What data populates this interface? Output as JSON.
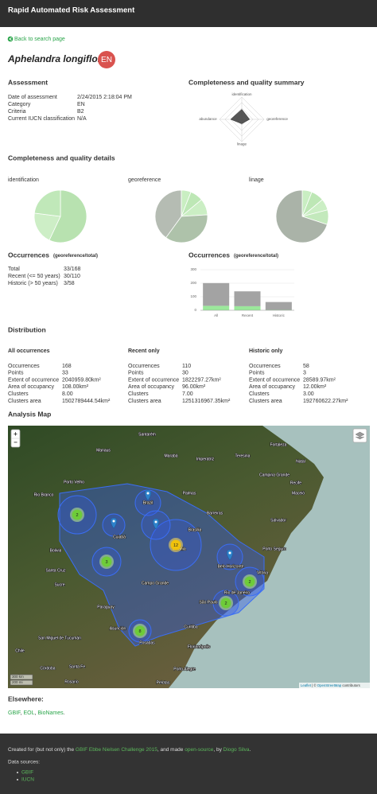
{
  "navbar": {
    "title": "Rapid Automated Risk Assessment"
  },
  "back_link": "Back to search page",
  "species": {
    "name": "Aphelandra longiflora",
    "category": "EN"
  },
  "assessment": {
    "title": "Assessment",
    "rows": [
      [
        "Date of assessment",
        "2/24/2015 2:18:04 PM"
      ],
      [
        "Category",
        "EN"
      ],
      [
        "Criteria",
        "B2"
      ],
      [
        "Current IUCN classification",
        "N/A"
      ]
    ]
  },
  "details_title": "Completeness and quality details",
  "occurrences": {
    "title": "Occurrences",
    "subtitle": "(georeference/total)",
    "rows": [
      [
        "Total",
        "33/168"
      ],
      [
        "Recent (<= 50 years)",
        "30/110"
      ],
      [
        "Historic (> 50 years)",
        "3/58"
      ]
    ]
  },
  "chart_data": [
    {
      "type": "radar",
      "title": "Completeness and quality summary",
      "axes": [
        "identification",
        "georeference",
        "linage",
        "abundance"
      ],
      "values": [
        0.45,
        0.35,
        0.2,
        0.5
      ],
      "rlim": [
        0,
        1
      ],
      "rticks": [
        0.25,
        0.5,
        0.75,
        1
      ],
      "color": "#444444"
    },
    {
      "type": "pie",
      "title": "identification",
      "values": [
        57,
        20,
        23
      ],
      "colors": [
        "#b8e2b0",
        "#cdeec6",
        "#c0e8b9"
      ]
    },
    {
      "type": "pie",
      "title": "georeference",
      "values": [
        6,
        8,
        10,
        36,
        40
      ],
      "colors": [
        "#c9eec2",
        "#bde7b5",
        "#cbeec4",
        "#aec2aa",
        "#b5bcb3"
      ]
    },
    {
      "type": "pie",
      "title": "linage",
      "values": [
        6,
        8,
        7,
        9,
        70
      ],
      "colors": [
        "#c9eec2",
        "#bde7b5",
        "#cbeec4",
        "#c3e9bc",
        "#aab3a8"
      ]
    },
    {
      "type": "bar",
      "stacked": true,
      "title": "Occurrences",
      "subtitle": "(georeference/total)",
      "categories": [
        "All",
        "Recent",
        "Historic"
      ],
      "series": [
        {
          "color": "#9be89b",
          "values": [
            33,
            30,
            3
          ]
        },
        {
          "color": "#a3a3a3",
          "values": [
            168,
            110,
            58
          ]
        }
      ],
      "ylim": [
        0,
        300
      ],
      "yticks": [
        0,
        100,
        200,
        300
      ],
      "grid": true
    }
  ],
  "distribution": {
    "title": "Distribution",
    "columns": [
      {
        "title": "All occurrences",
        "rows": [
          [
            "Occurrences",
            "168"
          ],
          [
            "Points",
            "33"
          ],
          [
            "Extent of occurrence",
            "2040959.80km²"
          ],
          [
            "Area of occupancy",
            "108.00km²"
          ],
          [
            "Clusters",
            "8.00"
          ],
          [
            "Clusters area",
            "1502789444.54km²"
          ]
        ]
      },
      {
        "title": "Recent only",
        "rows": [
          [
            "Occurrences",
            "110"
          ],
          [
            "Points",
            "30"
          ],
          [
            "Extent of occurrence",
            "1822297.27km²"
          ],
          [
            "Area of occupancy",
            "96.00km²"
          ],
          [
            "Clusters",
            "7.00"
          ],
          [
            "Clusters area",
            "1251316967.35km²"
          ]
        ]
      },
      {
        "title": "Historic only",
        "rows": [
          [
            "Occurrences",
            "58"
          ],
          [
            "Points",
            "3"
          ],
          [
            "Extent of occurrence",
            "28589.97km²"
          ],
          [
            "Area of occupancy",
            "12.00km²"
          ],
          [
            "Clusters",
            "3.00"
          ],
          [
            "Clusters area",
            "192760622.27km²"
          ]
        ]
      }
    ]
  },
  "map": {
    "title": "Analysis Map",
    "zoom_in": "+",
    "zoom_out": "−",
    "scale": [
      "300 km",
      "200 mi"
    ],
    "attribution": [
      {
        "text": "Leaflet",
        "link": true
      },
      {
        "text": " | © "
      },
      {
        "text": "OpenStreetMap",
        "link": true
      },
      {
        "text": " contributors"
      }
    ],
    "clusters": [
      2,
      3,
      12,
      2,
      2,
      8
    ],
    "labels": [
      "Santarém",
      "Manaus",
      "Marabá",
      "Imperatriz",
      "Fortaleza",
      "Natal",
      "Teresina",
      "Campina Grande",
      "Recife",
      "Maceió",
      "Porto Velho",
      "Rio Branco",
      "Brazil",
      "Palmas",
      "Barreiras",
      "Salvador",
      "Cuiabá",
      "Bolivia",
      "Brasília",
      "Goiânia",
      "Porto Seguro",
      "Santa Cruz",
      "Belo Horizonte",
      "Sucre",
      "Campo Grande",
      "Vitória",
      "Rio de Janeiro",
      "São Paulo",
      "Paraguay",
      "Asunción",
      "Curitiba",
      "Posadas",
      "San Miguel de Tucumán",
      "Florianópolis",
      "Córdoba",
      "Santa Fe",
      "Porto Alegre",
      "Rosario",
      "Chile",
      "Pelotas"
    ]
  },
  "elsewhere": {
    "title": "Elsewhere:",
    "items": [
      {
        "text": "GBIF",
        "link": true
      },
      {
        "text": ", "
      },
      {
        "text": "EOL",
        "link": true
      },
      {
        "text": ", "
      },
      {
        "text": "BioNames",
        "link": true
      },
      {
        "text": "."
      }
    ]
  },
  "footer": {
    "parts": [
      {
        "text": "Created for (but not only) the "
      },
      {
        "text": "GBIF Ebbe Nielsen Challenge 2015",
        "link": true
      },
      {
        "text": ", and made "
      },
      {
        "text": "open-source",
        "link": true
      },
      {
        "text": ", by "
      },
      {
        "text": "Diogo Silva",
        "link": true
      },
      {
        "text": "."
      }
    ],
    "sources_title": "Data sources:",
    "sources": [
      "GBIF",
      "IUCN"
    ]
  }
}
